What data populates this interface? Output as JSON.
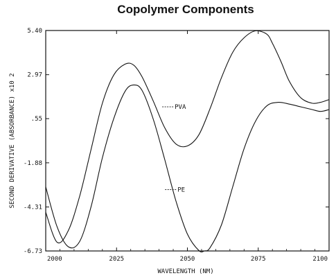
{
  "chart_data": {
    "type": "line",
    "title": "Copolymer Components",
    "xlabel": "WAVELENGTH (NM)",
    "ylabel": "SECOND DERIVATIVE (ABSORBANCE) x10 2",
    "xlim": [
      2000,
      2100
    ],
    "ylim": [
      -6.73,
      5.4
    ],
    "x_ticks": [
      2000,
      2025,
      2050,
      2075,
      2100
    ],
    "x_tick_labels": [
      "2000",
      "2025",
      "2050",
      "2075",
      "2100"
    ],
    "y_ticks": [
      5.4,
      2.97,
      0.55,
      -1.88,
      -4.31,
      -6.73
    ],
    "y_tick_labels": [
      "5.40",
      "2.97",
      ".55",
      "-1.88",
      "-4.31",
      "-6.73"
    ],
    "grid": false,
    "legend": "inline-labels",
    "series": [
      {
        "name": "PVA",
        "label_text": "PVA",
        "x": [
          2000,
          2004,
          2008,
          2012,
          2016,
          2020,
          2024,
          2028,
          2031,
          2034,
          2038,
          2042,
          2046,
          2050,
          2054,
          2058,
          2062,
          2066,
          2070,
          2074,
          2078,
          2080,
          2083,
          2086,
          2090,
          2094,
          2097,
          2100
        ],
        "y": [
          -4.6,
          -6.25,
          -5.6,
          -3.7,
          -1.15,
          1.4,
          2.95,
          3.55,
          3.5,
          2.85,
          1.5,
          0.05,
          -0.85,
          -0.95,
          -0.35,
          1.1,
          2.8,
          4.2,
          5.0,
          5.38,
          5.2,
          4.7,
          3.7,
          2.6,
          1.7,
          1.4,
          1.45,
          1.6
        ]
      },
      {
        "name": "PE",
        "label_text": "PE",
        "x": [
          2000,
          2004,
          2008,
          2012,
          2016,
          2020,
          2024,
          2028,
          2031,
          2034,
          2038,
          2042,
          2046,
          2050,
          2054,
          2056,
          2058,
          2062,
          2066,
          2070,
          2074,
          2078,
          2082,
          2086,
          2090,
          2094,
          2097,
          2100
        ],
        "y": [
          -3.2,
          -5.4,
          -6.5,
          -6.2,
          -4.3,
          -1.6,
          0.55,
          2.05,
          2.4,
          2.1,
          0.5,
          -1.7,
          -4.0,
          -5.8,
          -6.7,
          -6.73,
          -6.55,
          -5.3,
          -3.2,
          -1.1,
          0.4,
          1.25,
          1.45,
          1.35,
          1.2,
          1.05,
          0.95,
          1.05
        ]
      }
    ]
  }
}
